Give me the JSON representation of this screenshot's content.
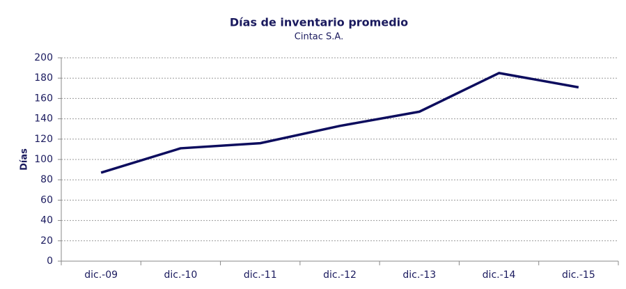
{
  "chart_data": {
    "type": "line",
    "title": "Días de inventario promedio",
    "subtitle": "Cintac S.A.",
    "y_label": "Días",
    "categories": [
      "dic.-09",
      "dic.-10",
      "dic.-11",
      "dic.-12",
      "dic.-13",
      "dic.-14",
      "dic.-15"
    ],
    "series": [
      {
        "name": "Días de inventario",
        "color": "#0d0d5e",
        "values": [
          87,
          111,
          116,
          133,
          147,
          185,
          171
        ]
      }
    ],
    "ylim": [
      0,
      200
    ],
    "yticks": [
      0,
      20,
      40,
      60,
      80,
      100,
      120,
      140,
      160,
      180,
      200
    ],
    "grid": true
  }
}
